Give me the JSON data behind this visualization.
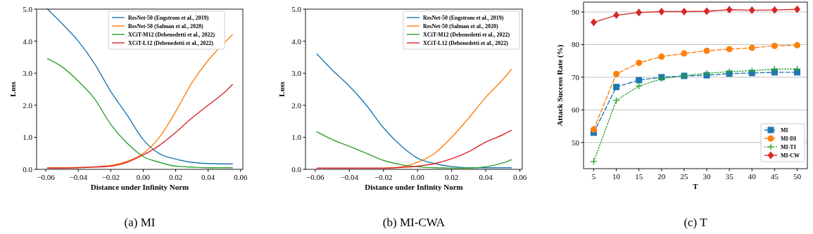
{
  "chart_data": [
    {
      "type": "line",
      "title": "(a) MI",
      "xlabel": "Distance under Infinity Norm",
      "ylabel": "Loss",
      "xlim": [
        -0.0657,
        0.0614
      ],
      "ylim": [
        0,
        5
      ],
      "xticks": [
        {
          "value": -0.06,
          "label": "−0.06"
        },
        {
          "value": -0.04,
          "label": "−0.04"
        },
        {
          "value": -0.02,
          "label": "−0.02"
        },
        {
          "value": 0,
          "label": "0.00"
        },
        {
          "value": 0.02,
          "label": "0.02"
        },
        {
          "value": 0.04,
          "label": "0.04"
        },
        {
          "value": 0.06,
          "label": "0.06"
        }
      ],
      "yticks": [
        {
          "value": 0,
          "label": "0.0"
        },
        {
          "value": 1,
          "label": "1.0"
        },
        {
          "value": 2,
          "label": "2.0"
        },
        {
          "value": 3,
          "label": "3.0"
        },
        {
          "value": 4,
          "label": "4.0"
        },
        {
          "value": 5,
          "label": "5.0"
        }
      ],
      "x": [
        -0.059,
        -0.05,
        -0.04,
        -0.03,
        -0.02,
        -0.01,
        0,
        0.01,
        0.02,
        0.03,
        0.04,
        0.05,
        0.055
      ],
      "grid": false,
      "legend": "top right",
      "marker": "none",
      "line_style": "solid",
      "series": [
        {
          "name": "ResNet-50 (Engstrom et al., 2019)",
          "color": "#1f77b4",
          "values": [
            5.0,
            4.55,
            4.0,
            3.3,
            2.43,
            1.7,
            0.93,
            0.49,
            0.32,
            0.22,
            0.18,
            0.17,
            0.17
          ]
        },
        {
          "name": "ResNet-50 (Salman et al., 2020)",
          "color": "#ff7f0e",
          "values": [
            0.05,
            0.05,
            0.06,
            0.08,
            0.12,
            0.25,
            0.5,
            1.0,
            1.8,
            2.7,
            3.4,
            3.95,
            4.2
          ]
        },
        {
          "name": "XCiT-M12 (Debenedetti et al., 2022)",
          "color": "#2ca02c",
          "values": [
            3.45,
            3.2,
            2.75,
            2.2,
            1.4,
            0.82,
            0.4,
            0.22,
            0.1,
            0.07,
            0.05,
            0.05,
            0.05
          ]
        },
        {
          "name": "XCiT-L12 (Debenedetti et al., 2022)",
          "color": "#d62728",
          "values": [
            0.04,
            0.04,
            0.05,
            0.07,
            0.1,
            0.22,
            0.45,
            0.75,
            1.15,
            1.6,
            2.0,
            2.4,
            2.65
          ]
        }
      ]
    },
    {
      "type": "line",
      "title": "(b) MI-CWA",
      "xlabel": "Distance under Infinity Norm",
      "ylabel": "Loss",
      "xlim": [
        -0.0657,
        0.0614
      ],
      "ylim": [
        0,
        5
      ],
      "xticks": [
        {
          "value": -0.06,
          "label": "−0.06"
        },
        {
          "value": -0.04,
          "label": "−0.04"
        },
        {
          "value": -0.02,
          "label": "−0.02"
        },
        {
          "value": 0,
          "label": "0.00"
        },
        {
          "value": 0.02,
          "label": "0.02"
        },
        {
          "value": 0.04,
          "label": "0.04"
        },
        {
          "value": 0.06,
          "label": "0.06"
        }
      ],
      "yticks": [
        {
          "value": 0,
          "label": "0.0"
        },
        {
          "value": 1,
          "label": "1.0"
        },
        {
          "value": 2,
          "label": "2.0"
        },
        {
          "value": 3,
          "label": "3.0"
        },
        {
          "value": 4,
          "label": "4.0"
        },
        {
          "value": 5,
          "label": "5.0"
        }
      ],
      "x": [
        -0.059,
        -0.05,
        -0.04,
        -0.03,
        -0.02,
        -0.01,
        0,
        0.01,
        0.02,
        0.03,
        0.04,
        0.05,
        0.055
      ],
      "grid": false,
      "legend": "top right",
      "marker": "none",
      "line_style": "solid",
      "series": [
        {
          "name": "ResNet-50 (Engstrom et al., 2019)",
          "color": "#1f77b4",
          "values": [
            3.6,
            3.1,
            2.6,
            2.0,
            1.3,
            0.75,
            0.35,
            0.18,
            0.09,
            0.05,
            0.05,
            0.05,
            0.05
          ]
        },
        {
          "name": "ResNet-50 (Salman et al., 2020)",
          "color": "#ff7f0e",
          "values": [
            null,
            null,
            null,
            null,
            0.03,
            0.07,
            0.22,
            0.5,
            1.0,
            1.6,
            2.25,
            2.8,
            3.12
          ]
        },
        {
          "name": "XCiT-M12 (Debenedetti et al., 2022)",
          "color": "#2ca02c",
          "values": [
            1.17,
            0.93,
            0.72,
            0.5,
            0.28,
            0.15,
            0.08,
            0.05,
            0.04,
            0.04,
            0.08,
            0.2,
            0.3
          ]
        },
        {
          "name": "XCiT-L12 (Debenedetti et al., 2022)",
          "color": "#d62728",
          "values": [
            0.04,
            0.04,
            0.04,
            0.04,
            0.04,
            0.06,
            0.1,
            0.18,
            0.33,
            0.55,
            0.85,
            1.08,
            1.22
          ]
        }
      ]
    },
    {
      "type": "line",
      "title": "(c) T",
      "xlabel": "T",
      "ylabel": "Attack Success Rate (%)",
      "xlim": [
        2.75,
        52.25
      ],
      "ylim": [
        42,
        93
      ],
      "xticks": [
        5,
        10,
        15,
        20,
        25,
        30,
        35,
        40,
        45,
        50
      ],
      "yticks": [
        50,
        60,
        70,
        80,
        90
      ],
      "x": [
        5,
        10,
        15,
        20,
        25,
        30,
        35,
        40,
        45,
        50
      ],
      "grid": "y",
      "legend": "bottom right",
      "series": [
        {
          "name": "MI",
          "color": "#1f77b4",
          "marker": "square",
          "line_style": "dashed",
          "values": [
            53,
            67,
            69.1,
            70,
            70.4,
            70.6,
            71.1,
            71.3,
            71.5,
            71.5
          ]
        },
        {
          "name": "MI-DI",
          "color": "#ff7f0e",
          "marker": "circle",
          "line_style": "dashed",
          "values": [
            54,
            71,
            74.4,
            76.3,
            77.3,
            78.1,
            78.6,
            79,
            79.6,
            79.8
          ]
        },
        {
          "name": "MI-TI",
          "color": "#2ca02c",
          "marker": "cross",
          "line_style": "dotted",
          "values": [
            44.2,
            62.9,
            67.3,
            69.5,
            70.5,
            71.2,
            71.7,
            72,
            72.5,
            72.5
          ]
        },
        {
          "name": "MI-CW",
          "color": "#d62728",
          "marker": "diamond",
          "line_style": "solid",
          "values": [
            86.8,
            89,
            89.8,
            90.1,
            90.1,
            90.2,
            90.7,
            90.5,
            90.6,
            90.8
          ]
        }
      ]
    }
  ]
}
